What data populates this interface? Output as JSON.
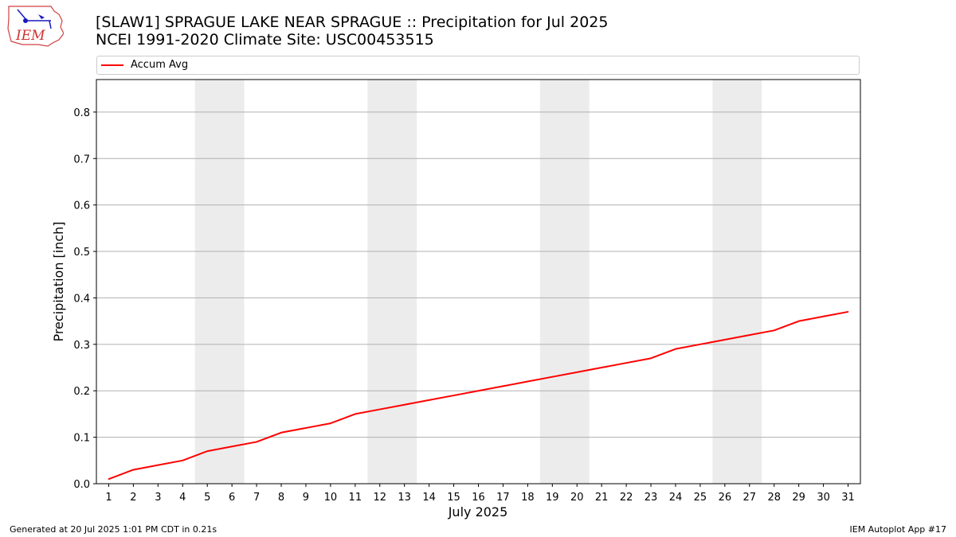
{
  "header": {
    "title_line1": "[SLAW1] SPRAGUE LAKE NEAR SPRAGUE :: Precipitation for Jul 2025",
    "title_line2": "NCEI 1991-2020 Climate Site: USC00453515",
    "logo_text": "IEM"
  },
  "footer": {
    "generated": "Generated at 20 Jul 2025 1:01 PM CDT in 0.21s",
    "app": "IEM Autoplot App #17"
  },
  "colors": {
    "series": "#ff0000",
    "weekend_band": "#ececec",
    "grid": "#b0b0b0"
  },
  "chart_data": {
    "type": "line",
    "title": "[SLAW1] SPRAGUE LAKE NEAR SPRAGUE :: Precipitation for Jul 2025",
    "subtitle": "NCEI 1991-2020 Climate Site: USC00453515",
    "xlabel": "July 2025",
    "ylabel": "Precipitation [inch]",
    "x": [
      1,
      2,
      3,
      4,
      5,
      6,
      7,
      8,
      9,
      10,
      11,
      12,
      13,
      14,
      15,
      16,
      17,
      18,
      19,
      20,
      21,
      22,
      23,
      24,
      25,
      26,
      27,
      28,
      29,
      30,
      31
    ],
    "xlim": [
      0.5,
      31.5
    ],
    "ylim": [
      0,
      0.87
    ],
    "yticks": [
      0.0,
      0.1,
      0.2,
      0.3,
      0.4,
      0.5,
      0.6,
      0.7,
      0.8
    ],
    "ytick_labels": [
      "0.0",
      "0.1",
      "0.2",
      "0.3",
      "0.4",
      "0.5",
      "0.6",
      "0.7",
      "0.8"
    ],
    "xtick_labels": [
      "1",
      "2",
      "3",
      "4",
      "5",
      "6",
      "7",
      "8",
      "9",
      "10",
      "11",
      "12",
      "13",
      "14",
      "15",
      "16",
      "17",
      "18",
      "19",
      "20",
      "21",
      "22",
      "23",
      "24",
      "25",
      "26",
      "27",
      "28",
      "29",
      "30",
      "31"
    ],
    "series": [
      {
        "name": "Accum Avg",
        "values": [
          0.01,
          0.03,
          0.04,
          0.05,
          0.07,
          0.08,
          0.09,
          0.11,
          0.12,
          0.13,
          0.15,
          0.16,
          0.17,
          0.18,
          0.19,
          0.2,
          0.21,
          0.22,
          0.23,
          0.24,
          0.25,
          0.26,
          0.27,
          0.29,
          0.3,
          0.31,
          0.32,
          0.33,
          0.35,
          0.36,
          0.37
        ]
      }
    ],
    "weekend_bands": [
      [
        5,
        6
      ],
      [
        12,
        13
      ],
      [
        19,
        20
      ],
      [
        26,
        27
      ]
    ],
    "grid": "y",
    "legend_position": "top"
  }
}
